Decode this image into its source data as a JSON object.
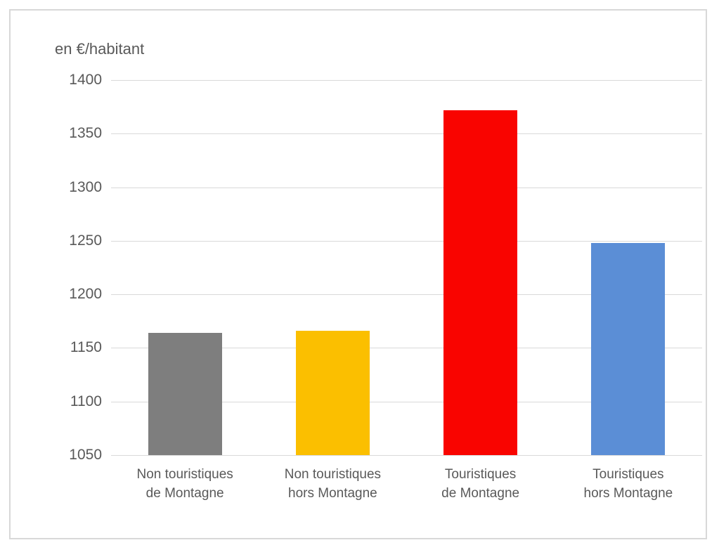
{
  "chart_data": {
    "type": "bar",
    "title": "en €/habitant",
    "categories": [
      "Non touristiques\nde Montagne",
      "Non touristiques\nhors Montagne",
      "Touristiques\nde Montagne",
      "Touristiques\nhors Montagne"
    ],
    "values": [
      1164,
      1166,
      1372,
      1248
    ],
    "bar_colors": [
      "#7E7E7E",
      "#FBBF00",
      "#F90400",
      "#5B8ED6"
    ],
    "xlabel": "",
    "ylabel": "en €/habitant",
    "ylim": [
      1050,
      1400
    ],
    "ytick_step": 50,
    "grid": true,
    "gridline_color": "#d9d9d9",
    "text_color": "#595959",
    "legend_position": "none"
  }
}
